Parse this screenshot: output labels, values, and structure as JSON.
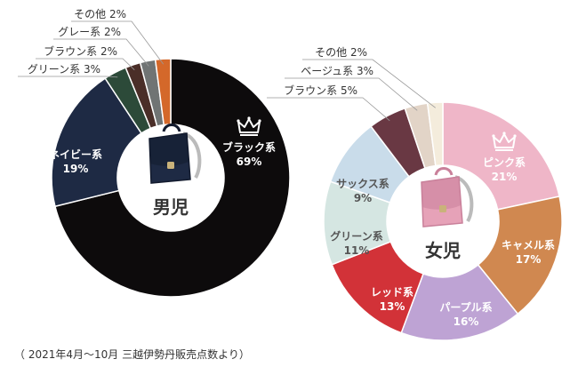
{
  "chart_data": [
    {
      "type": "pie",
      "center_label": "男児",
      "slices": [
        {
          "name": "ブラック系",
          "value": 69,
          "color": "#0d0b0c",
          "label_color": "#ffffff",
          "crown": true
        },
        {
          "name": "ネイビー系",
          "value": 19,
          "color": "#1e2a44",
          "label_color": "#ffffff"
        },
        {
          "name": "グリーン系",
          "value": 3,
          "color": "#2c4a39",
          "label_color": "#333333",
          "callout": true
        },
        {
          "name": "ブラウン系",
          "value": 2,
          "color": "#4a2e28",
          "label_color": "#333333",
          "callout": true
        },
        {
          "name": "グレー系",
          "value": 2,
          "color": "#707474",
          "label_color": "#333333",
          "callout": true
        },
        {
          "name": "その他",
          "value": 2,
          "color": "#d4682a",
          "label_color": "#333333",
          "callout": true
        }
      ]
    },
    {
      "type": "pie",
      "center_label": "女児",
      "slices": [
        {
          "name": "ピンク系",
          "value": 21,
          "color": "#efb6c8",
          "label_color": "#ffffff",
          "crown": true
        },
        {
          "name": "キャメル系",
          "value": 17,
          "color": "#d08850",
          "label_color": "#ffffff"
        },
        {
          "name": "パープル系",
          "value": 16,
          "color": "#bea3d4",
          "label_color": "#ffffff"
        },
        {
          "name": "レッド系",
          "value": 13,
          "color": "#d23238",
          "label_color": "#ffffff"
        },
        {
          "name": "グリーン系",
          "value": 11,
          "color": "#d5e6e2",
          "label_color": "#555555"
        },
        {
          "name": "サックス系",
          "value": 9,
          "color": "#c9dcea",
          "label_color": "#555555"
        },
        {
          "name": "ブラウン系",
          "value": 5,
          "color": "#693843",
          "label_color": "#333333",
          "callout": true
        },
        {
          "name": "ベージュ系",
          "value": 3,
          "color": "#e2d4c7",
          "label_color": "#333333",
          "callout": true
        },
        {
          "name": "その他",
          "value": 2,
          "color": "#f4ecdc",
          "label_color": "#333333",
          "callout": true
        }
      ]
    }
  ],
  "footnote": "（ 2021年4月～10月 三越伊勢丹販売点数より）",
  "icons": [
    "crown-icon",
    "backpack-icon"
  ]
}
